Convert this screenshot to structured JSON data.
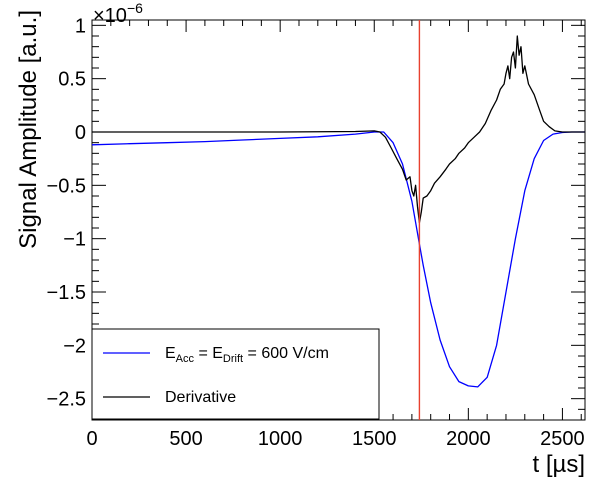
{
  "chart_data": {
    "type": "line",
    "xlabel": "t [µs]",
    "ylabel": "Signal Amplitude [a.u.]",
    "xlim": [
      0,
      2620
    ],
    "ylim": [
      -2.7,
      1.05
    ],
    "y_scale_label": "×10",
    "y_scale_exponent": "−6",
    "x_ticks": [
      0,
      500,
      1000,
      1500,
      2000,
      2500
    ],
    "x_tick_labels": [
      "0",
      "500",
      "1000",
      "1500",
      "2000",
      "2500"
    ],
    "y_ticks": [
      -2.5,
      -2,
      -1.5,
      -1,
      -0.5,
      0,
      0.5,
      1
    ],
    "y_tick_labels": [
      "−2.5",
      "−2",
      "−1.5",
      "−1",
      "−0.5",
      "0",
      "0.5",
      "1"
    ],
    "marker_line": {
      "x": 1740,
      "color": "#e8412f"
    },
    "grid": false,
    "legend": {
      "position": "bottom-left",
      "entries": [
        {
          "parts": [
            "E",
            "Acc",
            " = E",
            "Drift",
            " = 600 V/cm"
          ],
          "color": "#0000ff"
        },
        {
          "label": "Derivative",
          "color": "#000000"
        }
      ]
    },
    "series": [
      {
        "color": "#0000ff",
        "x": [
          0,
          200,
          400,
          600,
          800,
          1000,
          1200,
          1400,
          1500,
          1550,
          1600,
          1650,
          1700,
          1740,
          1760,
          1800,
          1850,
          1900,
          1950,
          2000,
          2050,
          2100,
          2150,
          2200,
          2250,
          2300,
          2350,
          2400,
          2450,
          2500,
          2550,
          2620
        ],
        "y": [
          -0.12,
          -0.11,
          -0.1,
          -0.09,
          -0.075,
          -0.06,
          -0.045,
          -0.02,
          0.0,
          0.0,
          -0.1,
          -0.3,
          -0.65,
          -1.05,
          -1.25,
          -1.6,
          -1.95,
          -2.2,
          -2.34,
          -2.38,
          -2.39,
          -2.3,
          -2.0,
          -1.5,
          -1.0,
          -0.55,
          -0.25,
          -0.08,
          -0.02,
          -0.005,
          0.0,
          0.0
        ]
      },
      {
        "color": "#000000",
        "x": [
          0,
          500,
          1000,
          1400,
          1500,
          1530,
          1560,
          1590,
          1620,
          1650,
          1670,
          1690,
          1700,
          1710,
          1720,
          1730,
          1740,
          1750,
          1760,
          1780,
          1800,
          1820,
          1850,
          1880,
          1900,
          1930,
          1950,
          1980,
          2000,
          2030,
          2060,
          2090,
          2120,
          2150,
          2170,
          2190,
          2200,
          2210,
          2220,
          2230,
          2240,
          2250,
          2260,
          2270,
          2280,
          2290,
          2300,
          2320,
          2350,
          2380,
          2400,
          2430,
          2460,
          2500,
          2620
        ],
        "y": [
          0.0,
          0.0,
          0.0,
          0.005,
          0.01,
          0.0,
          -0.05,
          -0.15,
          -0.25,
          -0.35,
          -0.45,
          -0.42,
          -0.55,
          -0.6,
          -0.5,
          -0.7,
          -0.85,
          -0.75,
          -0.62,
          -0.6,
          -0.55,
          -0.48,
          -0.42,
          -0.35,
          -0.3,
          -0.25,
          -0.2,
          -0.15,
          -0.1,
          -0.05,
          0.0,
          0.08,
          0.2,
          0.3,
          0.4,
          0.45,
          0.55,
          0.62,
          0.5,
          0.7,
          0.75,
          0.6,
          0.9,
          0.72,
          0.8,
          0.55,
          0.62,
          0.45,
          0.35,
          0.2,
          0.1,
          0.05,
          0.01,
          0.0,
          0.0
        ]
      }
    ]
  }
}
